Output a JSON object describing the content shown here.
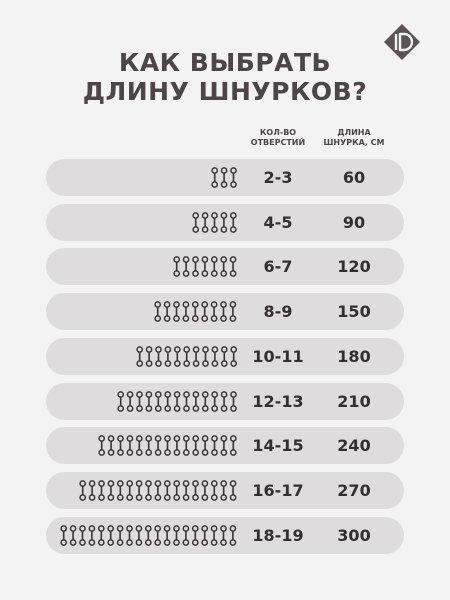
{
  "title": {
    "line1": "КАК ВЫБРАТЬ",
    "line2": "ДЛИНУ ШНУРКОВ?"
  },
  "columns": {
    "holes": {
      "line1": "КОЛ-ВО",
      "line2": "ОТВЕРСТИЙ"
    },
    "length": {
      "line1": "ДЛИНА",
      "line2": "ШНУРКА, СМ"
    }
  },
  "logo": {
    "icon": "brand-logo-icon",
    "color": "#5a5254"
  },
  "colors": {
    "background": "#f3f3f3",
    "row": "#dedcdd",
    "text": "#342e31",
    "hole": "#3b3437"
  },
  "rows": [
    {
      "holes": "2-3",
      "length": "60",
      "pairs": 3
    },
    {
      "holes": "4-5",
      "length": "90",
      "pairs": 5
    },
    {
      "holes": "6-7",
      "length": "120",
      "pairs": 7
    },
    {
      "holes": "8-9",
      "length": "150",
      "pairs": 9
    },
    {
      "holes": "10-11",
      "length": "180",
      "pairs": 11
    },
    {
      "holes": "12-13",
      "length": "210",
      "pairs": 13
    },
    {
      "holes": "14-15",
      "length": "240",
      "pairs": 15
    },
    {
      "holes": "16-17",
      "length": "270",
      "pairs": 17
    },
    {
      "holes": "18-19",
      "length": "300",
      "pairs": 19
    }
  ]
}
